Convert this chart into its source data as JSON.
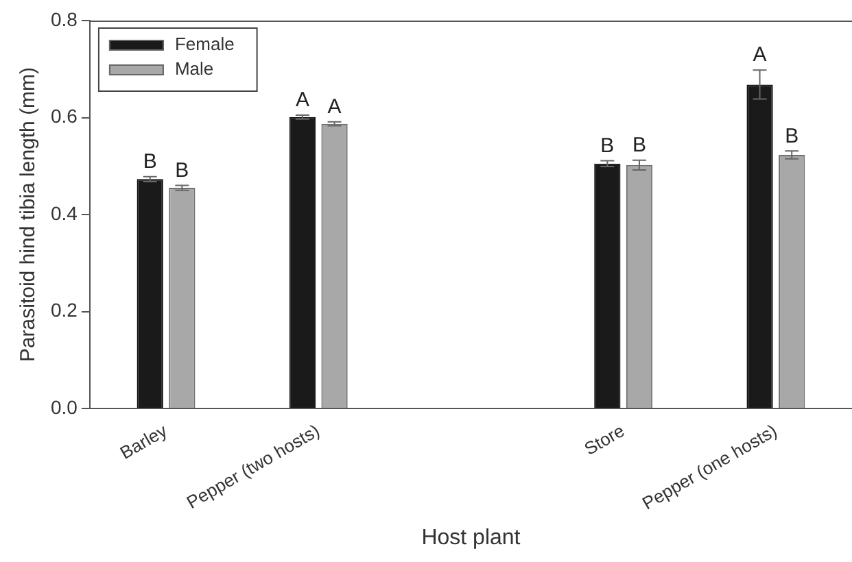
{
  "chart_data": {
    "type": "bar",
    "xlabel": "Host plant",
    "ylabel": "Parasitoid hind tibia length (mm)",
    "categories": [
      "Barley",
      "Pepper (two hosts)",
      null,
      "Store",
      "Pepper (one hosts)"
    ],
    "series": [
      {
        "name": "Female",
        "color": "#1a1a1a",
        "values": [
          0.473,
          0.601,
          null,
          0.505,
          0.668
        ],
        "errors": [
          0.005,
          0.004,
          null,
          0.006,
          0.03
        ],
        "value_labels": [
          "B",
          "A",
          null,
          "B",
          "A"
        ]
      },
      {
        "name": "Male",
        "color": "#a8a8a8",
        "values": [
          0.455,
          0.587,
          null,
          0.502,
          0.523
        ],
        "errors": [
          0.005,
          0.004,
          null,
          0.01,
          0.008
        ],
        "value_labels": [
          "B",
          "A",
          null,
          "B",
          "B"
        ]
      }
    ],
    "ylim": [
      0,
      0.8
    ],
    "yticks": [
      {
        "value": 0,
        "label": "0.0"
      },
      {
        "value": 0.2,
        "label": "0.2"
      },
      {
        "value": 0.4,
        "label": "0.4"
      },
      {
        "value": 0.6,
        "label": "0.6"
      },
      {
        "value": 0.8,
        "label": "0.8"
      }
    ],
    "grid": false,
    "legend": "top left"
  }
}
